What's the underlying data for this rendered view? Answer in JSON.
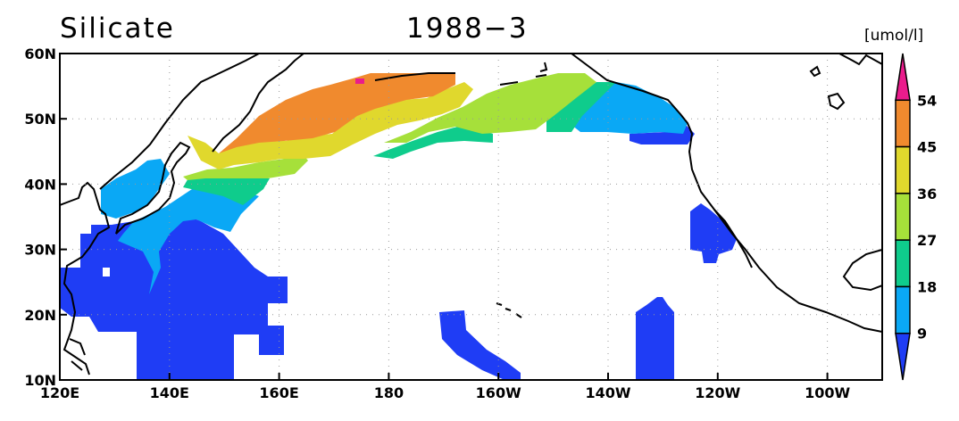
{
  "header": {
    "variable": "Silicate",
    "date": "1988−3"
  },
  "colorbar": {
    "units": "[umol/l]",
    "levels": [
      "9",
      "18",
      "27",
      "36",
      "45",
      "54"
    ],
    "colors": [
      "#1f3df5",
      "#0aa8f5",
      "#0fcc8c",
      "#a6e03a",
      "#e0d82d",
      "#f08a2e",
      "#ea1c8c"
    ]
  },
  "axes": {
    "lon_labels": [
      "120E",
      "140E",
      "160E",
      "180",
      "160W",
      "140W",
      "120W",
      "100W"
    ],
    "lat_labels": [
      "10N",
      "20N",
      "30N",
      "40N",
      "50N",
      "60N"
    ],
    "lon_values": [
      120,
      140,
      160,
      180,
      200,
      220,
      240,
      260
    ],
    "lat_values": [
      10,
      20,
      30,
      40,
      50,
      60
    ],
    "lon_range": [
      120,
      270
    ],
    "lat_range": [
      10,
      60
    ],
    "grid": "dotted"
  }
}
